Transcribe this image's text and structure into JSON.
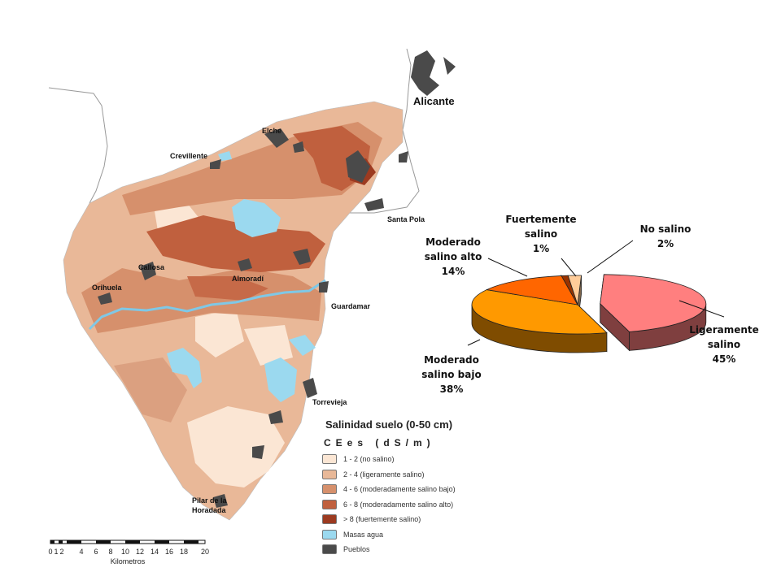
{
  "map": {
    "places": {
      "alicante": "Alicante",
      "elche": "Elche",
      "crevillente": "Crevillente",
      "santa_pola": "Santa Pola",
      "callosa": "Callosa",
      "orihuela": "Orihuela",
      "almoradi": "Almoradí",
      "guardamar": "Guardamar",
      "torrevieja": "Torrevieja",
      "pilar_line1": "Pilar de la",
      "pilar_line2": "Horadada"
    },
    "legend": {
      "title": "Salinidad suelo (0-50 cm)",
      "subtitle": "CEes (dS/m)",
      "items": [
        {
          "label": "1 - 2 (no salino)",
          "color": "#fbe6d4"
        },
        {
          "label": "2 - 4 (ligeramente salino)",
          "color": "#e8b898"
        },
        {
          "label": "4 - 6 (moderadamente salino bajo)",
          "color": "#d6906c"
        },
        {
          "label": "6 - 8 (moderadamente salino alto)",
          "color": "#c0603e"
        },
        {
          "label": "> 8 (fuertemente salino)",
          "color": "#9c3a20"
        },
        {
          "label": "Masas agua",
          "color": "#9bd9ef"
        },
        {
          "label": "Pueblos",
          "color": "#4a4a4a"
        }
      ]
    },
    "scale": {
      "ticks": [
        "0",
        "1",
        "2",
        "4",
        "6",
        "8",
        "10",
        "12",
        "14",
        "16",
        "18",
        "20"
      ],
      "unit": "Kilometros"
    }
  },
  "chart_data": {
    "type": "pie",
    "title": "",
    "slices": [
      {
        "label_lines": [
          "Ligeramente",
          "salino"
        ],
        "value": 45,
        "display": "45%",
        "color": "#ff7f7f",
        "side": "#7f3f3f",
        "exploded": true
      },
      {
        "label_lines": [
          "Moderado",
          "salino bajo"
        ],
        "value": 38,
        "display": "38%",
        "color": "#ff9900",
        "side": "#7f4c00"
      },
      {
        "label_lines": [
          "Moderado",
          "salino alto"
        ],
        "value": 14,
        "display": "14%",
        "color": "#ff6600",
        "side": "#7f3300"
      },
      {
        "label_lines": [
          "Fuertemente",
          "salino"
        ],
        "value": 1,
        "display": "1%",
        "color": "#993300",
        "side": "#4c1900"
      },
      {
        "label_lines": [
          "No salino"
        ],
        "value": 2,
        "display": "2%",
        "color": "#ffcc99",
        "side": "#7f664c"
      }
    ]
  }
}
